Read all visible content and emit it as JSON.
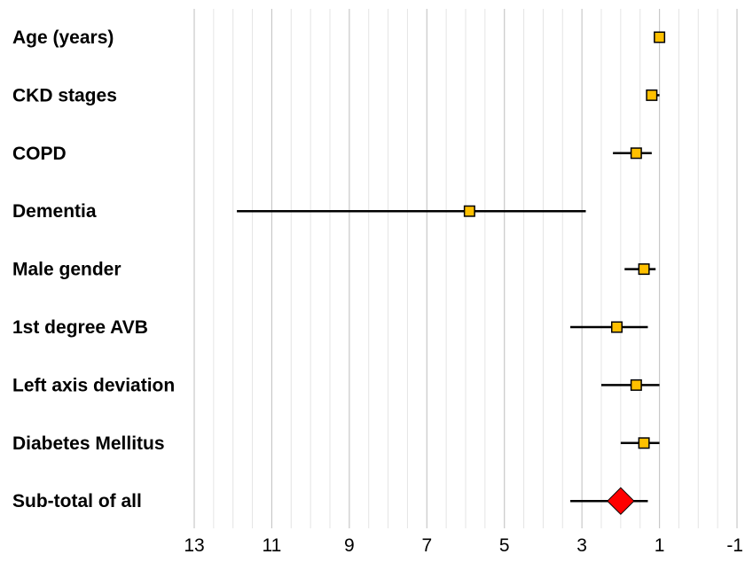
{
  "chart_data": {
    "type": "forest",
    "x_axis": {
      "reversed": true,
      "min": -1,
      "max": 13,
      "major_ticks": [
        13,
        11,
        9,
        7,
        5,
        3,
        1,
        -1
      ],
      "tick_labels": [
        "13",
        "11",
        "9",
        "7",
        "5",
        "3",
        "1",
        "-1"
      ],
      "minor_step": 0.5,
      "grid": true
    },
    "rows": [
      {
        "label": "Age (years)",
        "estimate": 1.0,
        "lower": 1.0,
        "upper": 1.0,
        "marker": "square"
      },
      {
        "label": "CKD stages",
        "estimate": 1.2,
        "lower": 1.0,
        "upper": 1.3,
        "marker": "square"
      },
      {
        "label": "COPD",
        "estimate": 1.6,
        "lower": 1.2,
        "upper": 2.2,
        "marker": "square"
      },
      {
        "label": "Dementia",
        "estimate": 5.9,
        "lower": 2.9,
        "upper": 11.9,
        "marker": "square"
      },
      {
        "label": "Male gender",
        "estimate": 1.4,
        "lower": 1.1,
        "upper": 1.9,
        "marker": "square"
      },
      {
        "label": "1st degree AVB",
        "estimate": 2.1,
        "lower": 1.3,
        "upper": 3.3,
        "marker": "square"
      },
      {
        "label": "Left axis deviation",
        "estimate": 1.6,
        "lower": 1.0,
        "upper": 2.5,
        "marker": "square"
      },
      {
        "label": "Diabetes Mellitus",
        "estimate": 1.4,
        "lower": 1.0,
        "upper": 2.0,
        "marker": "square"
      },
      {
        "label": "Sub-total of all",
        "estimate": 2.0,
        "lower": 1.3,
        "upper": 3.3,
        "marker": "diamond"
      }
    ],
    "colors": {
      "point_fill": "#FFC000",
      "summary_fill": "#FF0000",
      "ci_line": "#000000",
      "major_grid": "#c8c8c8",
      "minor_grid": "#e4e4e4"
    }
  }
}
